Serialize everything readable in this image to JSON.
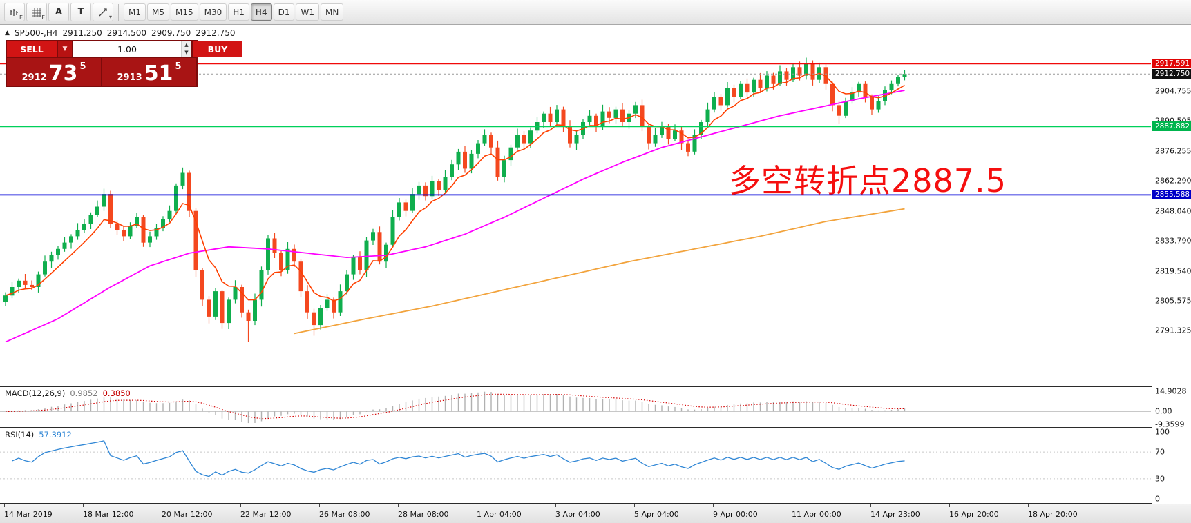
{
  "toolbar": {
    "tool_icons": [
      {
        "name": "bar-chart",
        "letter": "E"
      },
      {
        "name": "grid",
        "letter": "F"
      },
      {
        "name": "text",
        "glyph": "A"
      },
      {
        "name": "textbox",
        "glyph": "T"
      },
      {
        "name": "drawings",
        "caret": "▾"
      }
    ],
    "timeframes": [
      "M1",
      "M5",
      "M15",
      "M30",
      "H1",
      "H4",
      "D1",
      "W1",
      "MN"
    ],
    "active_timeframe": "H4"
  },
  "chart": {
    "symbol_header": {
      "collapse": "▲",
      "title": "SP500-,H4",
      "open": "2911.250",
      "high": "2914.500",
      "low": "2909.750",
      "close": "2912.750"
    },
    "trade_panel": {
      "sell_label": "SELL",
      "buy_label": "BUY",
      "volume": "1.00",
      "dropdown_caret": "▼",
      "spinner_up": "▲",
      "spinner_down": "▼",
      "bid": {
        "prefix": "2912",
        "big": "73",
        "sup": "5"
      },
      "ask": {
        "prefix": "2913",
        "big": "51",
        "sup": "5"
      },
      "colors": {
        "panel": "#7d0b0b",
        "button": "#d21414",
        "box": "#a81414"
      }
    },
    "annotation": {
      "text": "多空转折点2887.5",
      "color": "#f50f0f"
    }
  },
  "chart_data": {
    "type": "candlestick",
    "symbol": "SP500-",
    "timeframe": "H4",
    "colors": {
      "up": "#0fae4d",
      "down": "#f4481f"
    },
    "price_axis": {
      "view_high": 2936,
      "view_low": 2765,
      "ticks": [
        "2904.755",
        "2890.505",
        "2876.255",
        "2862.290",
        "2848.040",
        "2833.790",
        "2819.540",
        "2805.575",
        "2791.325"
      ]
    },
    "levels": [
      {
        "name": "resistance",
        "price": 2917.591,
        "color": "#f00a0a",
        "line_width": 1.6,
        "label": "2917.591",
        "badge": "#e00505"
      },
      {
        "name": "last-price",
        "price": 2912.75,
        "color": "#999999",
        "line_width": 1,
        "style": "dashed",
        "label": "2912.750",
        "badge": "#101010"
      },
      {
        "name": "pivot",
        "price": 2887.882,
        "color": "#00d05a",
        "line_width": 1.8,
        "label": "2887.882",
        "badge": "#00b54e"
      },
      {
        "name": "support",
        "price": 2855.588,
        "color": "#0000d8",
        "line_width": 1.8,
        "label": "2855.588",
        "badge": "#0000c8"
      }
    ],
    "moving_averages": [
      {
        "name": "slow",
        "color": "#f2a33c",
        "width": 1.8,
        "anchors": [
          [
            44,
            2790
          ],
          [
            55,
            2797
          ],
          [
            65,
            2803
          ],
          [
            75,
            2810
          ],
          [
            85,
            2817
          ],
          [
            95,
            2824
          ],
          [
            105,
            2830
          ],
          [
            115,
            2836
          ],
          [
            125,
            2843
          ],
          [
            137,
            2849
          ]
        ]
      },
      {
        "name": "medium",
        "color": "#ff00ff",
        "width": 1.8,
        "anchors": [
          [
            0,
            2786
          ],
          [
            8,
            2797
          ],
          [
            16,
            2812
          ],
          [
            22,
            2822
          ],
          [
            28,
            2828
          ],
          [
            34,
            2831
          ],
          [
            40,
            2830
          ],
          [
            46,
            2828
          ],
          [
            52,
            2826
          ],
          [
            58,
            2827
          ],
          [
            64,
            2831
          ],
          [
            70,
            2837
          ],
          [
            76,
            2845
          ],
          [
            82,
            2854
          ],
          [
            88,
            2863
          ],
          [
            94,
            2871
          ],
          [
            100,
            2878
          ],
          [
            106,
            2883
          ],
          [
            112,
            2888
          ],
          [
            118,
            2893
          ],
          [
            124,
            2897
          ],
          [
            130,
            2901
          ],
          [
            137,
            2905
          ]
        ]
      },
      {
        "name": "fast",
        "color": "#ff4000",
        "width": 1.6,
        "type": "ema",
        "period": 7
      }
    ],
    "candles": [
      [
        2805,
        2809.5,
        2802.9,
        2808
      ],
      [
        2808,
        2814.6,
        2806.7,
        2812
      ],
      [
        2812,
        2816,
        2809.1,
        2815
      ],
      [
        2815,
        2818.2,
        2811.3,
        2813
      ],
      [
        2813,
        2815.1,
        2810.5,
        2812
      ],
      [
        2812,
        2819.3,
        2809.4,
        2818
      ],
      [
        2818,
        2826.9,
        2817,
        2824
      ],
      [
        2824,
        2828.7,
        2820.8,
        2827
      ],
      [
        2827,
        2831.5,
        2824.9,
        2830
      ],
      [
        2830,
        2835.6,
        2828.7,
        2833
      ],
      [
        2833,
        2837,
        2830.1,
        2836
      ],
      [
        2836,
        2842.2,
        2834.3,
        2839
      ],
      [
        2839,
        2844.1,
        2837.5,
        2842
      ],
      [
        2842,
        2847.3,
        2839.4,
        2846
      ],
      [
        2846,
        2852.9,
        2845,
        2850
      ],
      [
        2850,
        2858.5,
        2848,
        2856
      ],
      [
        2856,
        2857.5,
        2840,
        2842
      ],
      [
        2842,
        2843.5,
        2836.5,
        2839
      ],
      [
        2839,
        2841,
        2833.8,
        2836
      ],
      [
        2836,
        2842.6,
        2834.5,
        2841
      ],
      [
        2841,
        2847,
        2839.9,
        2845
      ],
      [
        2845,
        2846,
        2831,
        2833
      ],
      [
        2833,
        2838.2,
        2830.9,
        2836
      ],
      [
        2836,
        2841.8,
        2834.3,
        2840
      ],
      [
        2840,
        2845.5,
        2838.4,
        2844
      ],
      [
        2844,
        2850.6,
        2842.7,
        2848
      ],
      [
        2848,
        2861,
        2846.5,
        2860
      ],
      [
        2860,
        2868.5,
        2858.3,
        2866
      ],
      [
        2866,
        2867,
        2845,
        2848
      ],
      [
        2848,
        2849.3,
        2816.9,
        2820
      ],
      [
        2820,
        2821,
        2803,
        2806
      ],
      [
        2806,
        2807.7,
        2794.8,
        2798
      ],
      [
        2798,
        2811.5,
        2796.4,
        2810
      ],
      [
        2810,
        2810.6,
        2792.2,
        2795
      ],
      [
        2795,
        2807,
        2792.1,
        2806
      ],
      [
        2806,
        2815.2,
        2804.3,
        2812
      ],
      [
        2812,
        2813.1,
        2797.5,
        2800
      ],
      [
        2800,
        2801.3,
        2786,
        2796
      ],
      [
        2796,
        2808.9,
        2794,
        2806
      ],
      [
        2806,
        2821.7,
        2802.8,
        2820
      ],
      [
        2820,
        2836.5,
        2817.9,
        2835
      ],
      [
        2835,
        2837.6,
        2825.7,
        2828
      ],
      [
        2828,
        2829,
        2817.1,
        2820
      ],
      [
        2820,
        2833.2,
        2818.3,
        2830
      ],
      [
        2830,
        2832.1,
        2821.5,
        2824
      ],
      [
        2824,
        2825.3,
        2807.4,
        2810
      ],
      [
        2810,
        2812.9,
        2797,
        2800
      ],
      [
        2800,
        2801.7,
        2789,
        2794
      ],
      [
        2794,
        2803.5,
        2791.9,
        2802
      ],
      [
        2802,
        2808.6,
        2800.7,
        2806
      ],
      [
        2806,
        2807,
        2797.1,
        2800
      ],
      [
        2800,
        2813.2,
        2798.3,
        2810
      ],
      [
        2810,
        2820.1,
        2808.5,
        2818
      ],
      [
        2818,
        2827.3,
        2815.4,
        2826
      ],
      [
        2826,
        2828.9,
        2818,
        2820
      ],
      [
        2820,
        2835.7,
        2816.8,
        2834
      ],
      [
        2834,
        2839.5,
        2831.9,
        2838
      ],
      [
        2838,
        2840.6,
        2822.7,
        2824
      ],
      [
        2824,
        2833,
        2821.1,
        2832
      ],
      [
        2832,
        2848.2,
        2830.3,
        2845
      ],
      [
        2845,
        2854.1,
        2843.5,
        2852
      ],
      [
        2852,
        2853.3,
        2845.4,
        2848
      ],
      [
        2848,
        2858.9,
        2847,
        2856
      ],
      [
        2856,
        2861.7,
        2853.2,
        2860
      ],
      [
        2860,
        2861.5,
        2852.9,
        2855
      ],
      [
        2855,
        2864.6,
        2853.7,
        2862
      ],
      [
        2862,
        2863,
        2855.1,
        2858
      ],
      [
        2858,
        2867.2,
        2856.3,
        2864
      ],
      [
        2864,
        2872.1,
        2862.5,
        2870
      ],
      [
        2870,
        2877.3,
        2867.4,
        2876
      ],
      [
        2876,
        2878.9,
        2866,
        2868
      ],
      [
        2868,
        2876.7,
        2865.8,
        2875
      ],
      [
        2875,
        2881.5,
        2872.9,
        2880
      ],
      [
        2880,
        2886.6,
        2878.7,
        2884
      ],
      [
        2884,
        2885,
        2875.1,
        2878
      ],
      [
        2878,
        2881.2,
        2862.3,
        2864
      ],
      [
        2864,
        2874.1,
        2861.5,
        2872
      ],
      [
        2872,
        2879.3,
        2869.4,
        2878
      ],
      [
        2878,
        2886.9,
        2877,
        2884
      ],
      [
        2884,
        2885.7,
        2877.2,
        2880
      ],
      [
        2880,
        2887.5,
        2877.9,
        2886
      ],
      [
        2886,
        2892.6,
        2884.7,
        2890
      ],
      [
        2890,
        2895,
        2887.1,
        2894
      ],
      [
        2894,
        2897.2,
        2888.3,
        2890
      ],
      [
        2890,
        2898.1,
        2888.5,
        2896
      ],
      [
        2896,
        2897.3,
        2885.4,
        2888
      ],
      [
        2888,
        2890.9,
        2878,
        2880
      ],
      [
        2880,
        2885.7,
        2876.8,
        2884
      ],
      [
        2884,
        2891.5,
        2881.9,
        2890
      ],
      [
        2890,
        2895.6,
        2888.7,
        2893
      ],
      [
        2893,
        2894,
        2885.1,
        2888
      ],
      [
        2888,
        2898.2,
        2886.3,
        2895
      ],
      [
        2895,
        2897.1,
        2889.5,
        2892
      ],
      [
        2892,
        2897.3,
        2889.4,
        2896
      ],
      [
        2896,
        2898.9,
        2888,
        2890
      ],
      [
        2890,
        2895.7,
        2886.8,
        2894
      ],
      [
        2894,
        2899.5,
        2891.9,
        2898
      ],
      [
        2898,
        2900.6,
        2885.7,
        2888
      ],
      [
        2888,
        2889,
        2877.1,
        2880
      ],
      [
        2880,
        2887.2,
        2878.3,
        2884
      ],
      [
        2884,
        2890.1,
        2882.5,
        2888
      ],
      [
        2888,
        2889.3,
        2879.4,
        2882
      ],
      [
        2882,
        2888.9,
        2881,
        2886
      ],
      [
        2886,
        2887.7,
        2876.8,
        2880
      ],
      [
        2880,
        2881.5,
        2873.9,
        2876
      ],
      [
        2876,
        2886.6,
        2874.7,
        2884
      ],
      [
        2884,
        2891,
        2882.1,
        2890
      ],
      [
        2890,
        2899.2,
        2888.3,
        2896
      ],
      [
        2896,
        2904.1,
        2894.5,
        2902
      ],
      [
        2902,
        2903.3,
        2895.4,
        2898
      ],
      [
        2898,
        2908.9,
        2897,
        2906
      ],
      [
        2906,
        2907.7,
        2899.3,
        2902
      ],
      [
        2902,
        2909.5,
        2900.9,
        2908
      ],
      [
        2908,
        2910.6,
        2901.7,
        2904
      ],
      [
        2904,
        2911,
        2902.1,
        2910
      ],
      [
        2910,
        2913.2,
        2904.3,
        2906
      ],
      [
        2906,
        2914.1,
        2904.5,
        2912
      ],
      [
        2912,
        2913.3,
        2905.4,
        2908
      ],
      [
        2908,
        2916.9,
        2907,
        2914
      ],
      [
        2914,
        2915.7,
        2907.2,
        2910
      ],
      [
        2910,
        2917.5,
        2908.9,
        2916
      ],
      [
        2916,
        2918.6,
        2909.7,
        2912
      ],
      [
        2912,
        2920.5,
        2910.1,
        2918
      ],
      [
        2918,
        2919.2,
        2907.3,
        2910
      ],
      [
        2910,
        2918.1,
        2908.5,
        2916
      ],
      [
        2916,
        2917.3,
        2905.4,
        2908
      ],
      [
        2908,
        2909,
        2895.1,
        2898
      ],
      [
        2898,
        2899.7,
        2889.3,
        2893
      ],
      [
        2893,
        2901.5,
        2891.9,
        2900
      ],
      [
        2900,
        2906.6,
        2898.7,
        2904
      ],
      [
        2904,
        2909,
        2902.1,
        2908
      ],
      [
        2908,
        2909.2,
        2899.3,
        2902
      ],
      [
        2902,
        2903.1,
        2893.5,
        2896
      ],
      [
        2896,
        2902.3,
        2894.4,
        2900
      ],
      [
        2900,
        2906.9,
        2898,
        2905
      ],
      [
        2905,
        2909.7,
        2903.2,
        2908
      ],
      [
        2908,
        2912.4,
        2906.9,
        2911.25
      ],
      [
        2911.25,
        2914.5,
        2909.75,
        2912.75
      ]
    ],
    "time_labels": [
      "14 Mar 2019",
      "18 Mar 12:00",
      "20 Mar 12:00",
      "22 Mar 12:00",
      "26 Mar 08:00",
      "28 Mar 08:00",
      "1 Apr 04:00",
      "3 Apr 04:00",
      "5 Apr 04:00",
      "9 Apr 00:00",
      "11 Apr 00:00",
      "14 Apr 23:00",
      "16 Apr 20:00",
      "18 Apr 20:00"
    ],
    "macd": {
      "label": "MACD(12,26,9)",
      "values": [
        "0.9852",
        "0.3850"
      ],
      "fast": 12,
      "slow": 26,
      "signal": 9,
      "hist_color": "#b0b0b0",
      "signal_color": "#d40000",
      "range": [
        -11.5,
        18
      ],
      "scale_labels": [
        "14.9028",
        "0.00",
        "-9.3599"
      ]
    },
    "rsi": {
      "label": "RSI(14)",
      "value": "57.3912",
      "period": 14,
      "color": "#2f86d5",
      "levels": [
        70,
        30
      ],
      "scale_labels": [
        "100",
        "70",
        "30",
        "0"
      ]
    }
  }
}
